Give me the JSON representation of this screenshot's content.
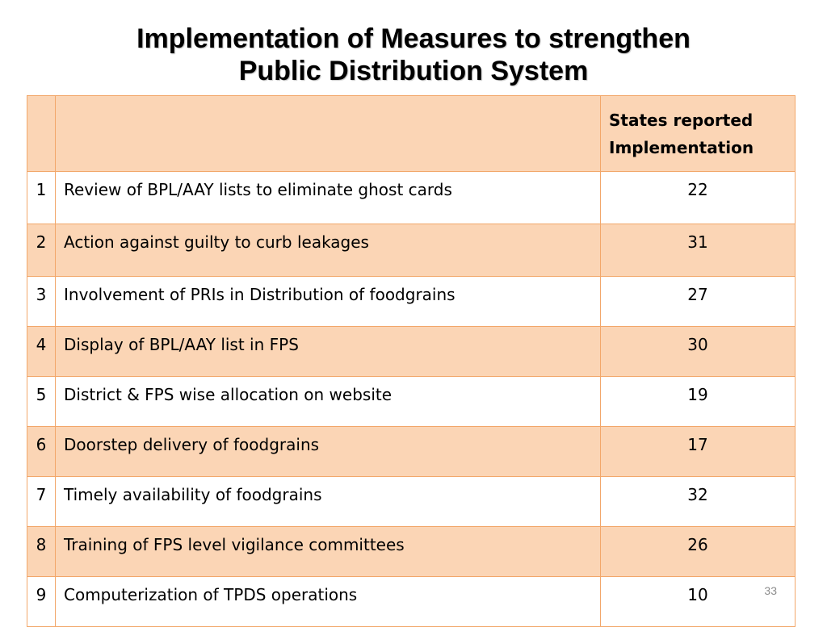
{
  "title": {
    "line1": "Implementation of Measures to strengthen",
    "line2": "Public Distribution System"
  },
  "table": {
    "header": {
      "num": "",
      "measure": "",
      "value_line1": "States reported",
      "value_line2": "Implementation"
    },
    "rows": [
      {
        "num": "1",
        "measure": "Review of BPL/AAY lists to eliminate ghost cards",
        "value": "22"
      },
      {
        "num": "2",
        "measure": "Action against guilty to curb leakages",
        "value": "31"
      },
      {
        "num": "3",
        "measure": "Involvement of PRIs in Distribution of foodgrains",
        "value": "27"
      },
      {
        "num": "4",
        "measure": "Display of BPL/AAY list in FPS",
        "value": "30"
      },
      {
        "num": "5",
        "measure": "District & FPS wise allocation on website",
        "value": "19"
      },
      {
        "num": "6",
        "measure": "Doorstep delivery of foodgrains",
        "value": "17"
      },
      {
        "num": "7",
        "measure": "Timely availability of foodgrains",
        "value": "32"
      },
      {
        "num": "8",
        "measure": "Training of FPS level vigilance committees",
        "value": "26"
      },
      {
        "num": "9",
        "measure": "Computerization of TPDS operations",
        "value": "10"
      }
    ]
  },
  "slide_number": "33",
  "colors": {
    "shaded_row": "#fbd5b5",
    "border": "#f2a76a",
    "plain_row": "#ffffff"
  }
}
